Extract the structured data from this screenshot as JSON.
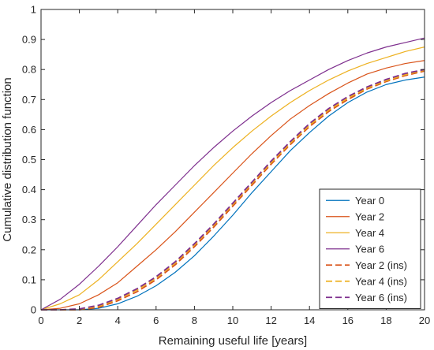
{
  "chart_data": {
    "type": "line",
    "xlabel": "Remaining useful life [years]",
    "ylabel": "Cumulative distribution function",
    "xlim": [
      0,
      20
    ],
    "ylim": [
      0,
      1
    ],
    "xticks": [
      "0",
      "2",
      "4",
      "6",
      "8",
      "10",
      "12",
      "14",
      "16",
      "18",
      "20"
    ],
    "yticks": [
      "0",
      "0.1",
      "0.2",
      "0.3",
      "0.4",
      "0.5",
      "0.6",
      "0.7",
      "0.8",
      "0.9",
      "1"
    ],
    "grid": false,
    "legend_position": "bottom-right",
    "x": [
      0,
      1,
      2,
      3,
      4,
      5,
      6,
      7,
      8,
      9,
      10,
      11,
      12,
      13,
      14,
      15,
      16,
      17,
      18,
      19,
      20
    ],
    "series": [
      {
        "name": "Year 0",
        "color": "#0072BD",
        "dash": "solid",
        "values": [
          0,
          0,
          0,
          0.005,
          0.02,
          0.045,
          0.08,
          0.125,
          0.18,
          0.245,
          0.315,
          0.39,
          0.46,
          0.53,
          0.59,
          0.645,
          0.69,
          0.725,
          0.75,
          0.765,
          0.775
        ]
      },
      {
        "name": "Year 2",
        "color": "#D95319",
        "dash": "solid",
        "values": [
          0,
          0.005,
          0.02,
          0.05,
          0.09,
          0.145,
          0.2,
          0.26,
          0.325,
          0.39,
          0.455,
          0.52,
          0.58,
          0.635,
          0.68,
          0.72,
          0.755,
          0.785,
          0.805,
          0.82,
          0.83
        ]
      },
      {
        "name": "Year 4",
        "color": "#EDB120",
        "dash": "solid",
        "values": [
          0,
          0.02,
          0.05,
          0.1,
          0.16,
          0.22,
          0.285,
          0.35,
          0.415,
          0.48,
          0.54,
          0.595,
          0.645,
          0.69,
          0.73,
          0.765,
          0.795,
          0.82,
          0.84,
          0.86,
          0.875
        ]
      },
      {
        "name": "Year 6",
        "color": "#7E2F8E",
        "dash": "solid",
        "values": [
          0,
          0.035,
          0.085,
          0.145,
          0.21,
          0.28,
          0.35,
          0.415,
          0.48,
          0.54,
          0.595,
          0.645,
          0.69,
          0.73,
          0.765,
          0.8,
          0.83,
          0.855,
          0.875,
          0.89,
          0.905
        ]
      },
      {
        "name": "Year 2 (ins)",
        "color": "#D95319",
        "dash": "dashed",
        "values": [
          0,
          0,
          0,
          0.008,
          0.03,
          0.06,
          0.1,
          0.15,
          0.21,
          0.275,
          0.345,
          0.415,
          0.485,
          0.55,
          0.61,
          0.66,
          0.7,
          0.735,
          0.76,
          0.78,
          0.795
        ]
      },
      {
        "name": "Year 4 (ins)",
        "color": "#EDB120",
        "dash": "dashed",
        "values": [
          0,
          0,
          0.002,
          0.012,
          0.035,
          0.066,
          0.106,
          0.156,
          0.216,
          0.281,
          0.351,
          0.421,
          0.49,
          0.555,
          0.615,
          0.665,
          0.705,
          0.738,
          0.763,
          0.783,
          0.798
        ]
      },
      {
        "name": "Year 6 (ins)",
        "color": "#7E2F8E",
        "dash": "dashed",
        "values": [
          0,
          0,
          0.003,
          0.015,
          0.038,
          0.07,
          0.11,
          0.16,
          0.22,
          0.285,
          0.355,
          0.425,
          0.495,
          0.56,
          0.62,
          0.67,
          0.71,
          0.742,
          0.767,
          0.787,
          0.8
        ]
      }
    ]
  }
}
